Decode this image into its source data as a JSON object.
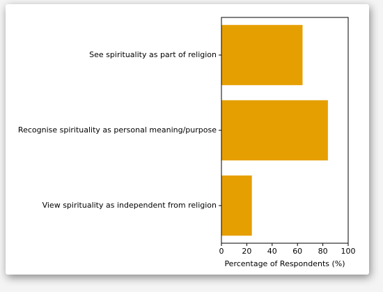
{
  "chart_data": {
    "type": "bar",
    "orientation": "horizontal",
    "categories": [
      "See spirituality as part of religion",
      "Recognise spirituality as personal meaning/purpose",
      "View spirituality as independent from religion"
    ],
    "values": [
      64,
      84,
      24
    ],
    "color": "#e69f00",
    "xlabel": "Percentage of Respondents (%)",
    "xlim": [
      0,
      100
    ],
    "xticks": [
      0,
      20,
      40,
      60,
      80,
      100
    ],
    "grid": false
  }
}
